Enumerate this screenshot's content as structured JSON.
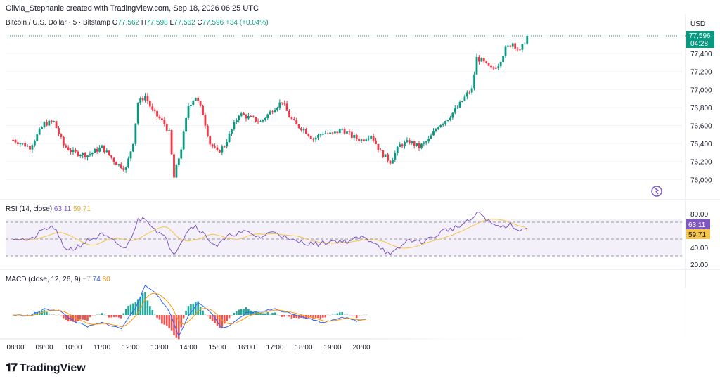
{
  "header": {
    "attribution": "Olivia_Stephanie created with TradingView.com, Sep 18, 2026 06:25 UTC"
  },
  "price_pane": {
    "symbol": "Bitcoin / U.S. Dollar · 5 · Bitstamp",
    "ohlc": {
      "o_label": "O",
      "o": "77,562",
      "h_label": "H",
      "h": "77,598",
      "l_label": "L",
      "l": "77,562",
      "c_label": "C",
      "c": "77,596",
      "change": "+34 (+0.04%)"
    },
    "currency": "USD",
    "last_price": "77,596",
    "countdown": "04:28",
    "y_ticks": [
      "77,400",
      "77,200",
      "77,000",
      "76,800",
      "76,600",
      "76,400",
      "76,200",
      "76,000"
    ]
  },
  "rsi_pane": {
    "title": "RSI (14, close)",
    "rsi_value": "63.11",
    "ma_value": "59.71",
    "y_ticks": [
      "80.00",
      "40.00",
      "20.00"
    ]
  },
  "macd_pane": {
    "title": "MACD (close, 12, 26, 9)",
    "hist_value": "−7",
    "macd_value": "74",
    "signal_value": "80"
  },
  "x_ticks": [
    "08:00",
    "09:00",
    "10:00",
    "11:00",
    "12:00",
    "13:00",
    "14:00",
    "15:00",
    "16:00",
    "17:00",
    "18:00",
    "19:00",
    "20:00"
  ],
  "brand": {
    "name": "TradingView"
  },
  "colors": {
    "up": "#089981",
    "down": "#f23645",
    "rsi": "#7e57c2",
    "rsi_ma": "#f7c44a",
    "macd": "#2962ff",
    "signal": "#ff9800"
  },
  "chart_data": {
    "type": "candlestick",
    "x_range": [
      "08:00",
      "20:00"
    ],
    "ylim": [
      75950,
      77650
    ],
    "close_anchors": [
      [
        "07:55",
        76440
      ],
      [
        "08:30",
        76360
      ],
      [
        "09:00",
        76620
      ],
      [
        "09:20",
        76640
      ],
      [
        "09:40",
        76380
      ],
      [
        "10:00",
        76300
      ],
      [
        "10:30",
        76270
      ],
      [
        "11:00",
        76360
      ],
      [
        "11:30",
        76180
      ],
      [
        "11:50",
        76120
      ],
      [
        "12:05",
        76420
      ],
      [
        "12:15",
        76850
      ],
      [
        "12:30",
        76930
      ],
      [
        "12:45",
        76760
      ],
      [
        "13:10",
        76620
      ],
      [
        "13:20",
        76520
      ],
      [
        "13:30",
        76020
      ],
      [
        "13:45",
        76350
      ],
      [
        "14:00",
        76820
      ],
      [
        "14:15",
        76920
      ],
      [
        "14:30",
        76730
      ],
      [
        "14:45",
        76400
      ],
      [
        "15:00",
        76300
      ],
      [
        "15:15",
        76380
      ],
      [
        "15:30",
        76550
      ],
      [
        "15:45",
        76730
      ],
      [
        "16:00",
        76700
      ],
      [
        "16:30",
        76640
      ],
      [
        "17:00",
        76800
      ],
      [
        "17:15",
        76870
      ],
      [
        "17:30",
        76700
      ],
      [
        "17:45",
        76600
      ],
      [
        "18:00",
        76560
      ],
      [
        "18:20",
        76450
      ],
      [
        "18:40",
        76520
      ],
      [
        "19:00",
        76500
      ],
      [
        "19:20",
        76560
      ],
      [
        "19:40",
        76480
      ],
      [
        "20:00",
        76440
      ],
      [
        "20:20",
        76500
      ],
      [
        "20:40",
        76300
      ],
      [
        "21:00",
        76200
      ],
      [
        "21:20",
        76380
      ],
      [
        "21:40",
        76420
      ],
      [
        "22:00",
        76360
      ],
      [
        "22:20",
        76440
      ],
      [
        "22:40",
        76600
      ],
      [
        "23:00",
        76680
      ],
      [
        "23:20",
        76800
      ],
      [
        "23:40",
        76950
      ],
      [
        "23:50",
        77000
      ],
      [
        "24:00",
        77350
      ],
      [
        "24:10",
        77320
      ],
      [
        "24:30",
        77220
      ],
      [
        "24:45",
        77280
      ],
      [
        "25:00",
        77450
      ],
      [
        "25:15",
        77520
      ],
      [
        "25:30",
        77420
      ],
      [
        "25:45",
        77596
      ]
    ],
    "rsi": {
      "levels": [
        70,
        50,
        30
      ],
      "ylim": [
        20,
        85
      ],
      "anchors": [
        [
          "07:55",
          52
        ],
        [
          "08:30",
          48
        ],
        [
          "09:00",
          62
        ],
        [
          "09:20",
          64
        ],
        [
          "09:40",
          40
        ],
        [
          "10:00",
          38
        ],
        [
          "10:30",
          48
        ],
        [
          "11:00",
          55
        ],
        [
          "11:30",
          45
        ],
        [
          "11:50",
          38
        ],
        [
          "12:15",
          72
        ],
        [
          "12:30",
          76
        ],
        [
          "12:50",
          62
        ],
        [
          "13:10",
          52
        ],
        [
          "13:30",
          33
        ],
        [
          "14:00",
          62
        ],
        [
          "14:15",
          66
        ],
        [
          "14:45",
          48
        ],
        [
          "15:00",
          42
        ],
        [
          "15:30",
          56
        ],
        [
          "16:00",
          58
        ],
        [
          "16:30",
          52
        ],
        [
          "17:00",
          60
        ],
        [
          "17:30",
          48
        ],
        [
          "18:00",
          46
        ],
        [
          "18:30",
          44
        ],
        [
          "19:00",
          48
        ],
        [
          "19:30",
          47
        ],
        [
          "20:00",
          52
        ],
        [
          "20:30",
          46
        ],
        [
          "21:00",
          30
        ],
        [
          "21:20",
          40
        ],
        [
          "21:40",
          50
        ],
        [
          "22:00",
          46
        ],
        [
          "22:30",
          52
        ],
        [
          "22:50",
          60
        ],
        [
          "23:20",
          64
        ],
        [
          "23:40",
          70
        ],
        [
          "23:55",
          76
        ],
        [
          "24:05",
          82
        ],
        [
          "24:30",
          68
        ],
        [
          "24:50",
          64
        ],
        [
          "25:10",
          68
        ],
        [
          "25:30",
          60
        ],
        [
          "25:45",
          63.11
        ]
      ]
    },
    "macd": {
      "anchors": [
        [
          "07:55",
          0
        ],
        [
          "08:30",
          -2
        ],
        [
          "09:00",
          15
        ],
        [
          "09:30",
          12
        ],
        [
          "10:00",
          -15
        ],
        [
          "10:30",
          -30
        ],
        [
          "11:00",
          -20
        ],
        [
          "11:40",
          -35
        ],
        [
          "12:10",
          20
        ],
        [
          "12:30",
          75
        ],
        [
          "12:50",
          60
        ],
        [
          "13:20",
          10
        ],
        [
          "13:40",
          -55
        ],
        [
          "14:00",
          0
        ],
        [
          "14:20",
          30
        ],
        [
          "14:45",
          10
        ],
        [
          "15:10",
          -35
        ],
        [
          "15:30",
          -25
        ],
        [
          "16:00",
          5
        ],
        [
          "16:30",
          10
        ],
        [
          "17:00",
          15
        ],
        [
          "17:30",
          5
        ],
        [
          "18:00",
          -5
        ],
        [
          "18:40",
          -20
        ],
        [
          "19:20",
          -5
        ],
        [
          "19:50",
          -15
        ],
        [
          "20:10",
          -10
        ]
      ],
      "macd_last": 74,
      "signal_last": 80,
      "histogram_last": -7
    }
  }
}
